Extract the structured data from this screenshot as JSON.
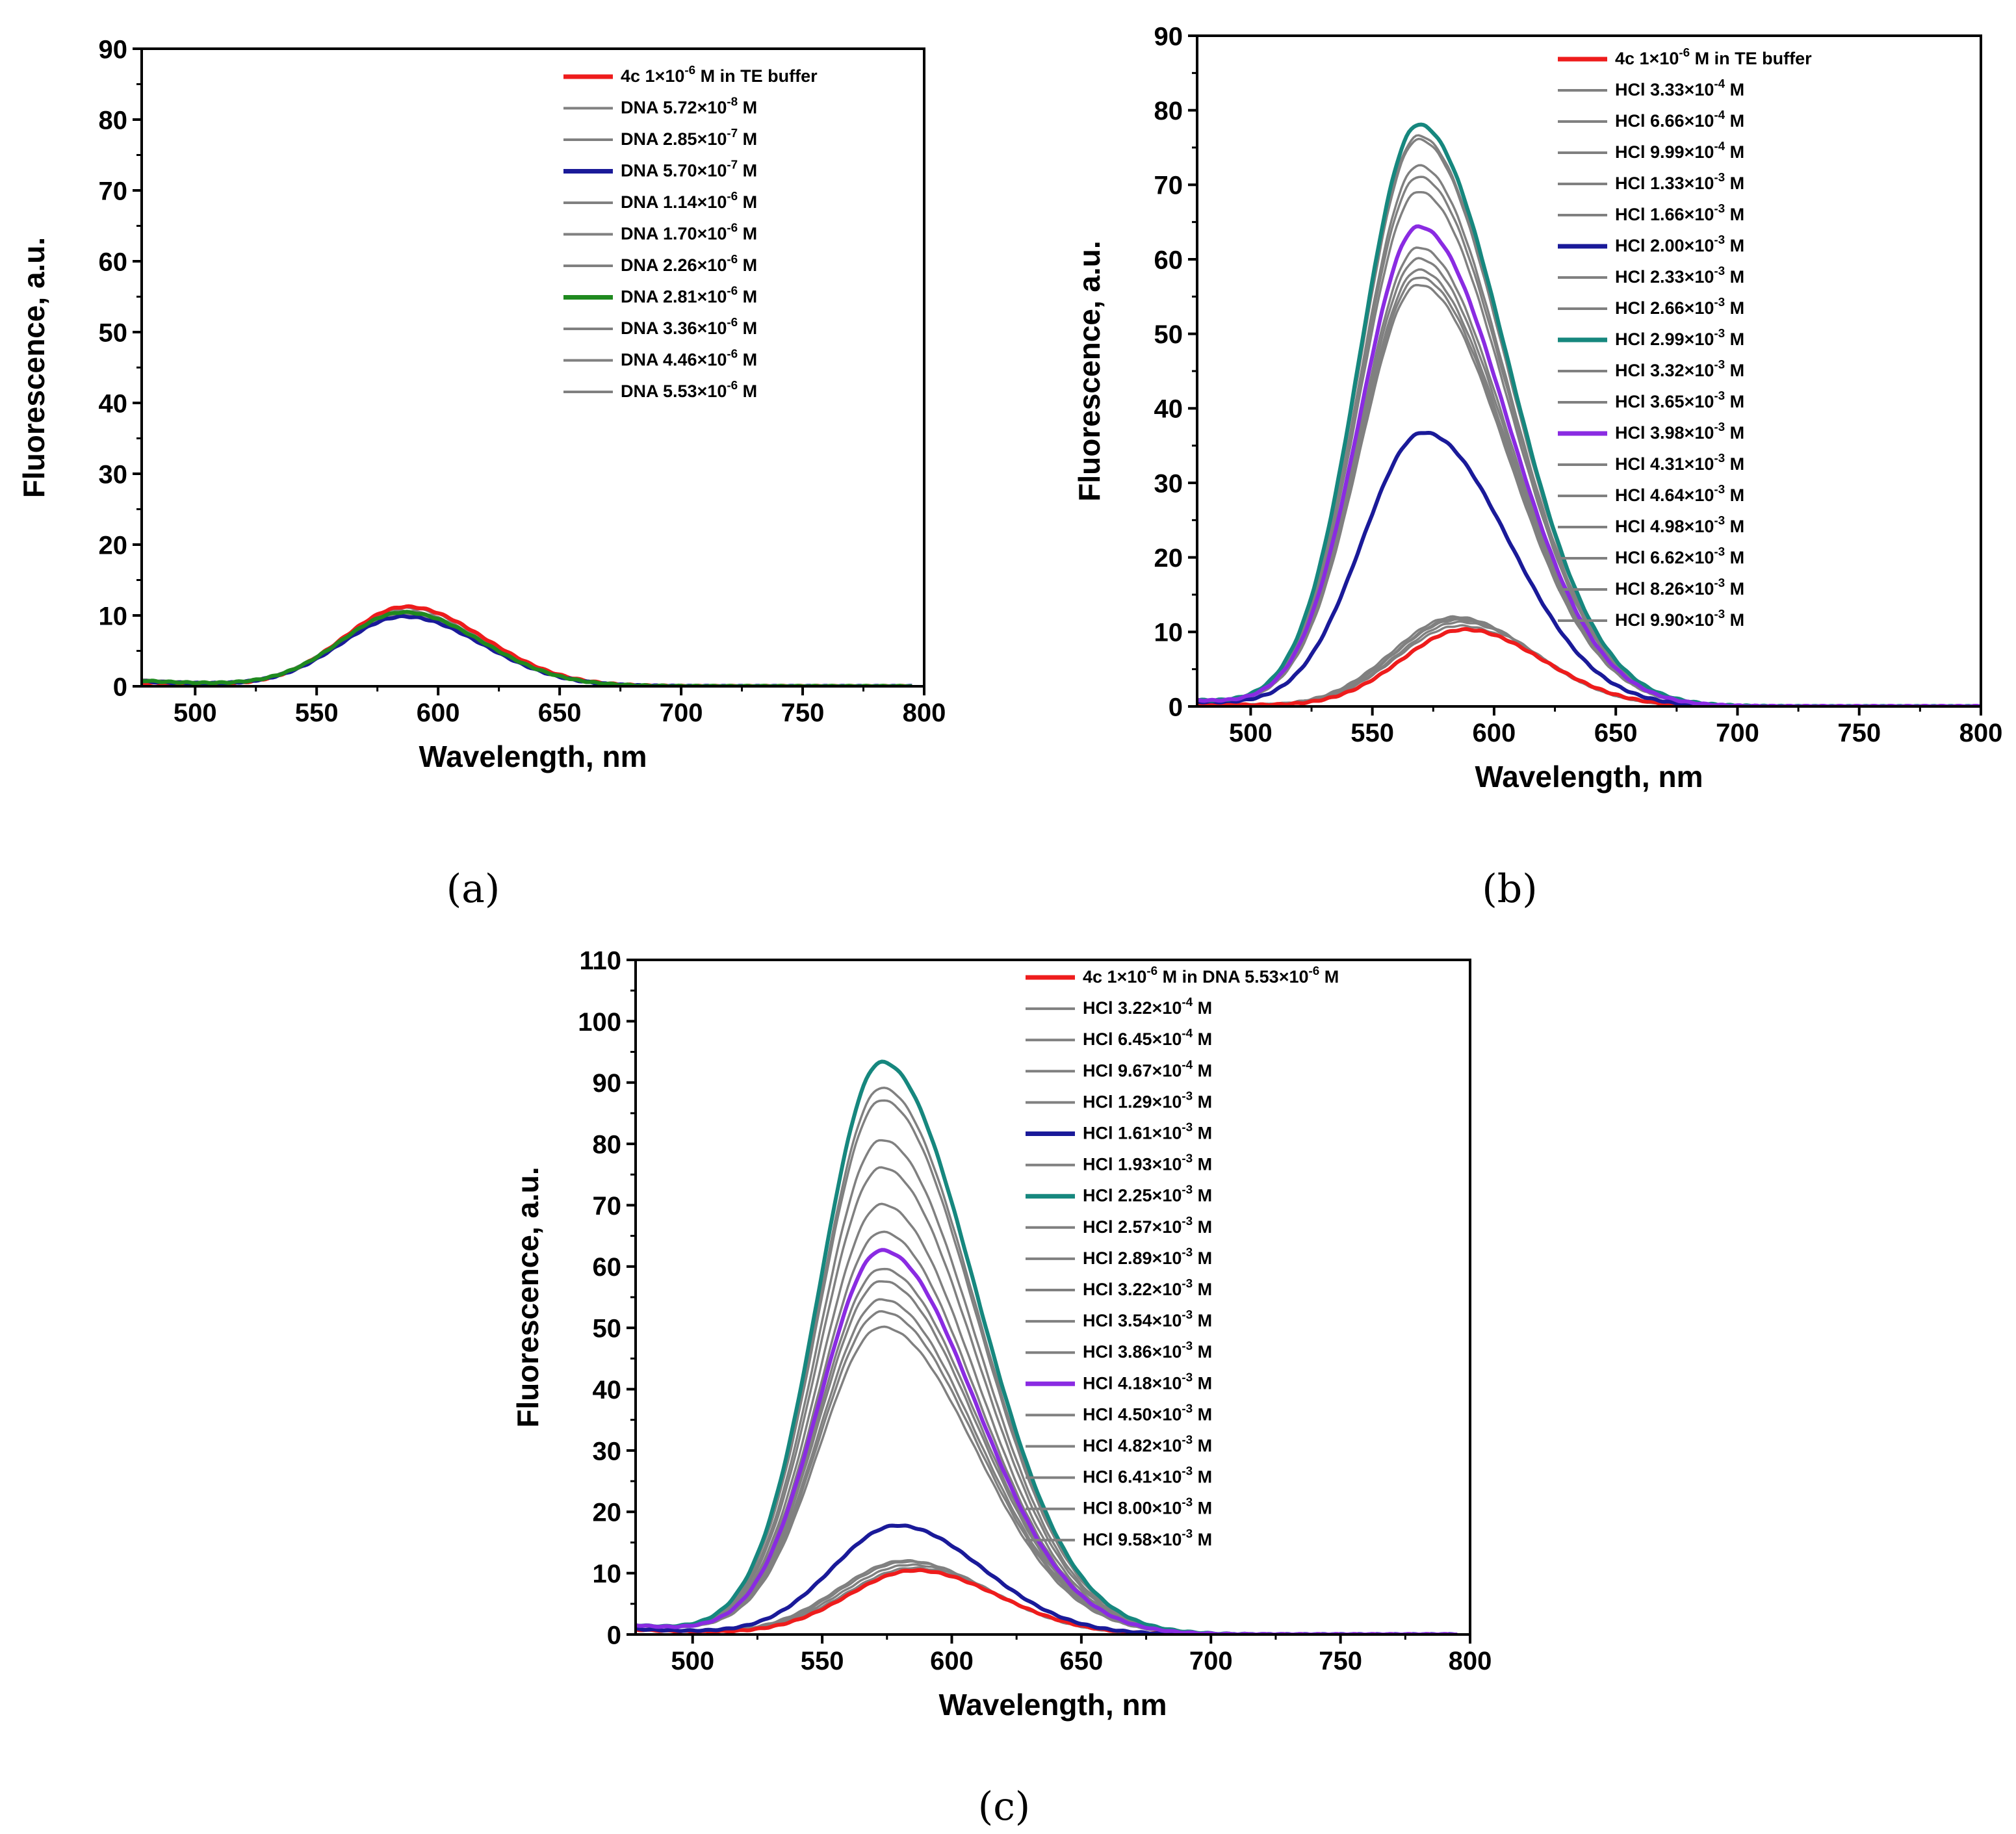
{
  "chart_data": [
    {
      "type": "line",
      "panel_label": "(a)",
      "xlabel": "Wavelength, nm",
      "ylabel": "Fluorescence, a.u.",
      "xlim": [
        478,
        800
      ],
      "ylim": [
        0,
        90
      ],
      "xticks": [
        500,
        550,
        600,
        650,
        700,
        750,
        800
      ],
      "yticks": [
        0,
        10,
        20,
        30,
        40,
        50,
        60,
        70,
        80,
        90
      ],
      "legend_position": "top-right",
      "series": [
        {
          "name": "4c 1×10",
          "sup": "-6",
          "tail": " M in TE buffer",
          "color": "#ee1c1c",
          "highlight": true,
          "peak": 11.2,
          "center": 587,
          "sigma_left": 26,
          "sigma_right": 32,
          "baseline": 0.5
        },
        {
          "name": "DNA 5.72×10",
          "sup": "-8",
          "tail": " M",
          "color": "#808080",
          "highlight": false,
          "peak": 11.0,
          "center": 587,
          "sigma_left": 26,
          "sigma_right": 32,
          "baseline": 0.6
        },
        {
          "name": "DNA 2.85×10",
          "sup": "-7",
          "tail": " M",
          "color": "#808080",
          "highlight": false,
          "peak": 10.5,
          "center": 587,
          "sigma_left": 26,
          "sigma_right": 32,
          "baseline": 0.6
        },
        {
          "name": "DNA 5.70×10",
          "sup": "-7",
          "tail": " M",
          "color": "#1a1a99",
          "highlight": true,
          "peak": 9.8,
          "center": 586,
          "sigma_left": 26,
          "sigma_right": 32,
          "baseline": 0.7
        },
        {
          "name": "DNA 1.14×10",
          "sup": "-6",
          "tail": " M",
          "color": "#808080",
          "highlight": false,
          "peak": 10.0,
          "center": 586,
          "sigma_left": 26,
          "sigma_right": 32,
          "baseline": 0.7
        },
        {
          "name": "DNA 1.70×10",
          "sup": "-6",
          "tail": " M",
          "color": "#808080",
          "highlight": false,
          "peak": 10.2,
          "center": 586,
          "sigma_left": 26,
          "sigma_right": 32,
          "baseline": 0.7
        },
        {
          "name": "DNA 2.26×10",
          "sup": "-6",
          "tail": " M",
          "color": "#808080",
          "highlight": false,
          "peak": 10.3,
          "center": 586,
          "sigma_left": 26,
          "sigma_right": 32,
          "baseline": 0.8
        },
        {
          "name": "DNA 2.81×10",
          "sup": "-6",
          "tail": " M",
          "color": "#1f8a1f",
          "highlight": true,
          "peak": 10.4,
          "center": 586,
          "sigma_left": 26,
          "sigma_right": 32,
          "baseline": 0.8
        },
        {
          "name": "DNA 3.36×10",
          "sup": "-6",
          "tail": " M",
          "color": "#808080",
          "highlight": false,
          "peak": 10.4,
          "center": 586,
          "sigma_left": 26,
          "sigma_right": 32,
          "baseline": 0.8
        },
        {
          "name": "DNA 4.46×10",
          "sup": "-6",
          "tail": " M",
          "color": "#808080",
          "highlight": false,
          "peak": 10.5,
          "center": 586,
          "sigma_left": 26,
          "sigma_right": 32,
          "baseline": 0.9
        },
        {
          "name": "DNA 5.53×10",
          "sup": "-6",
          "tail": " M",
          "color": "#808080",
          "highlight": false,
          "peak": 10.6,
          "center": 586,
          "sigma_left": 26,
          "sigma_right": 32,
          "baseline": 0.9
        }
      ]
    },
    {
      "type": "line",
      "panel_label": "(b)",
      "xlabel": "Wavelength, nm",
      "ylabel": "Fluorescence, a.u.",
      "xlim": [
        478,
        800
      ],
      "ylim": [
        0,
        90
      ],
      "xticks": [
        500,
        550,
        600,
        650,
        700,
        750,
        800
      ],
      "yticks": [
        0,
        10,
        20,
        30,
        40,
        50,
        60,
        70,
        80,
        90
      ],
      "legend_position": "top-right",
      "series": [
        {
          "name": "4c 1×10",
          "sup": "-6",
          "tail": " M in TE buffer",
          "color": "#ee1c1c",
          "highlight": true,
          "peak": 10.3,
          "center": 588,
          "sigma_left": 26,
          "sigma_right": 32,
          "baseline": 0.3
        },
        {
          "name": "HCl 3.33×10",
          "sup": "-4",
          "tail": " M",
          "color": "#808080",
          "highlight": false,
          "peak": 10.8,
          "center": 586,
          "sigma_left": 26,
          "sigma_right": 32,
          "baseline": 0.3
        },
        {
          "name": "HCl 6.66×10",
          "sup": "-4",
          "tail": " M",
          "color": "#808080",
          "highlight": false,
          "peak": 11.3,
          "center": 586,
          "sigma_left": 26,
          "sigma_right": 32,
          "baseline": 0.3
        },
        {
          "name": "HCl 9.99×10",
          "sup": "-4",
          "tail": " M",
          "color": "#808080",
          "highlight": false,
          "peak": 11.6,
          "center": 585,
          "sigma_left": 26,
          "sigma_right": 32,
          "baseline": 0.3
        },
        {
          "name": "HCl 1.33×10",
          "sup": "-3",
          "tail": " M",
          "color": "#808080",
          "highlight": false,
          "peak": 11.8,
          "center": 585,
          "sigma_left": 26,
          "sigma_right": 32,
          "baseline": 0.3
        },
        {
          "name": "HCl 1.66×10",
          "sup": "-3",
          "tail": " M",
          "color": "#808080",
          "highlight": false,
          "peak": 12.0,
          "center": 584,
          "sigma_left": 26,
          "sigma_right": 32,
          "baseline": 0.3
        },
        {
          "name": "HCl 2.00×10",
          "sup": "-3",
          "tail": " M",
          "color": "#1a1a99",
          "highlight": true,
          "peak": 36.7,
          "center": 571,
          "sigma_left": 25,
          "sigma_right": 35,
          "baseline": 0.6
        },
        {
          "name": "HCl 2.33×10",
          "sup": "-3",
          "tail": " M",
          "color": "#808080",
          "highlight": false,
          "peak": 56.5,
          "center": 569,
          "sigma_left": 24,
          "sigma_right": 36,
          "baseline": 0.8
        },
        {
          "name": "HCl 2.66×10",
          "sup": "-3",
          "tail": " M",
          "color": "#808080",
          "highlight": false,
          "peak": 57.5,
          "center": 569,
          "sigma_left": 24,
          "sigma_right": 36,
          "baseline": 0.8
        },
        {
          "name": "HCl 2.99×10",
          "sup": "-3",
          "tail": " M",
          "color": "#16877e",
          "highlight": true,
          "peak": 78.0,
          "center": 569,
          "sigma_left": 24,
          "sigma_right": 36,
          "baseline": 0.8
        },
        {
          "name": "HCl 3.32×10",
          "sup": "-3",
          "tail": " M",
          "color": "#808080",
          "highlight": false,
          "peak": 58.5,
          "center": 569,
          "sigma_left": 24,
          "sigma_right": 36,
          "baseline": 0.8
        },
        {
          "name": "HCl 3.65×10",
          "sup": "-3",
          "tail": " M",
          "color": "#808080",
          "highlight": false,
          "peak": 60.0,
          "center": 569,
          "sigma_left": 24,
          "sigma_right": 36,
          "baseline": 0.8
        },
        {
          "name": "HCl 3.98×10",
          "sup": "-3",
          "tail": " M",
          "color": "#8a2be2",
          "highlight": true,
          "peak": 64.3,
          "center": 569,
          "sigma_left": 24,
          "sigma_right": 36,
          "baseline": 0.8
        },
        {
          "name": "HCl 4.31×10",
          "sup": "-3",
          "tail": " M",
          "color": "#808080",
          "highlight": false,
          "peak": 61.5,
          "center": 569,
          "sigma_left": 24,
          "sigma_right": 36,
          "baseline": 0.8
        },
        {
          "name": "HCl 4.64×10",
          "sup": "-3",
          "tail": " M",
          "color": "#808080",
          "highlight": false,
          "peak": 69.0,
          "center": 569,
          "sigma_left": 24,
          "sigma_right": 36,
          "baseline": 0.8
        },
        {
          "name": "HCl 4.98×10",
          "sup": "-3",
          "tail": " M",
          "color": "#808080",
          "highlight": false,
          "peak": 71.0,
          "center": 569,
          "sigma_left": 24,
          "sigma_right": 36,
          "baseline": 0.8
        },
        {
          "name": "HCl 6.62×10",
          "sup": "-3",
          "tail": " M",
          "color": "#808080",
          "highlight": false,
          "peak": 72.5,
          "center": 569,
          "sigma_left": 24,
          "sigma_right": 36,
          "baseline": 0.8
        },
        {
          "name": "HCl 8.26×10",
          "sup": "-3",
          "tail": " M",
          "color": "#808080",
          "highlight": false,
          "peak": 76.0,
          "center": 569,
          "sigma_left": 24,
          "sigma_right": 36,
          "baseline": 0.8
        },
        {
          "name": "HCl 9.90×10",
          "sup": "-3",
          "tail": " M",
          "color": "#808080",
          "highlight": false,
          "peak": 76.5,
          "center": 569,
          "sigma_left": 24,
          "sigma_right": 36,
          "baseline": 0.8
        }
      ]
    },
    {
      "type": "line",
      "panel_label": "(c)",
      "xlabel": "Wavelength, nm",
      "ylabel": "Fluorescence, a.u.",
      "xlim": [
        478,
        800
      ],
      "ylim": [
        0,
        110
      ],
      "xticks": [
        500,
        550,
        600,
        650,
        700,
        750,
        800
      ],
      "yticks": [
        0,
        10,
        20,
        30,
        40,
        50,
        60,
        70,
        80,
        90,
        100,
        110
      ],
      "legend_position": "top-right",
      "series": [
        {
          "name": "4c 1×10",
          "sup": "-6",
          "tail": " M in DNA 5.53×10",
          "sup2": "-6",
          "tail2": " M",
          "color": "#ee1c1c",
          "highlight": true,
          "peak": 10.4,
          "center": 586,
          "sigma_left": 26,
          "sigma_right": 32,
          "baseline": 0.8
        },
        {
          "name": "HCl 3.22×10",
          "sup": "-4",
          "tail": " M",
          "color": "#808080",
          "highlight": false,
          "peak": 10.8,
          "center": 585,
          "sigma_left": 26,
          "sigma_right": 32,
          "baseline": 0.8
        },
        {
          "name": "HCl 6.45×10",
          "sup": "-4",
          "tail": " M",
          "color": "#808080",
          "highlight": false,
          "peak": 11.3,
          "center": 584,
          "sigma_left": 26,
          "sigma_right": 32,
          "baseline": 0.8
        },
        {
          "name": "HCl 9.67×10",
          "sup": "-4",
          "tail": " M",
          "color": "#808080",
          "highlight": false,
          "peak": 11.8,
          "center": 583,
          "sigma_left": 26,
          "sigma_right": 32,
          "baseline": 0.8
        },
        {
          "name": "HCl 1.29×10",
          "sup": "-3",
          "tail": " M",
          "color": "#808080",
          "highlight": false,
          "peak": 12.0,
          "center": 582,
          "sigma_left": 26,
          "sigma_right": 32,
          "baseline": 0.8
        },
        {
          "name": "HCl 1.61×10",
          "sup": "-3",
          "tail": " M",
          "color": "#1a1a99",
          "highlight": true,
          "peak": 17.7,
          "center": 579,
          "sigma_left": 25,
          "sigma_right": 33,
          "baseline": 0.9
        },
        {
          "name": "HCl 1.93×10",
          "sup": "-3",
          "tail": " M",
          "color": "#808080",
          "highlight": false,
          "peak": 50.0,
          "center": 573,
          "sigma_left": 24,
          "sigma_right": 36,
          "baseline": 1.5
        },
        {
          "name": "HCl 2.25×10",
          "sup": "-3",
          "tail": " M",
          "color": "#16877e",
          "highlight": true,
          "peak": 93.2,
          "center": 573,
          "sigma_left": 24,
          "sigma_right": 36,
          "baseline": 1.5
        },
        {
          "name": "HCl 2.57×10",
          "sup": "-3",
          "tail": " M",
          "color": "#808080",
          "highlight": false,
          "peak": 52.5,
          "center": 573,
          "sigma_left": 24,
          "sigma_right": 36,
          "baseline": 1.5
        },
        {
          "name": "HCl 2.89×10",
          "sup": "-3",
          "tail": " M",
          "color": "#808080",
          "highlight": false,
          "peak": 54.5,
          "center": 573,
          "sigma_left": 24,
          "sigma_right": 36,
          "baseline": 1.5
        },
        {
          "name": "HCl 3.22×10",
          "sup": "-3",
          "tail": " M",
          "color": "#808080",
          "highlight": false,
          "peak": 57.5,
          "center": 573,
          "sigma_left": 24,
          "sigma_right": 36,
          "baseline": 1.5
        },
        {
          "name": "HCl 3.54×10",
          "sup": "-3",
          "tail": " M",
          "color": "#808080",
          "highlight": false,
          "peak": 59.5,
          "center": 573,
          "sigma_left": 24,
          "sigma_right": 36,
          "baseline": 1.5
        },
        {
          "name": "HCl 3.86×10",
          "sup": "-3",
          "tail": " M",
          "color": "#808080",
          "highlight": false,
          "peak": 65.5,
          "center": 573,
          "sigma_left": 24,
          "sigma_right": 36,
          "baseline": 1.5
        },
        {
          "name": "HCl 4.18×10",
          "sup": "-3",
          "tail": " M",
          "color": "#8a2be2",
          "highlight": true,
          "peak": 62.5,
          "center": 573,
          "sigma_left": 24,
          "sigma_right": 36,
          "baseline": 1.5
        },
        {
          "name": "HCl 4.50×10",
          "sup": "-3",
          "tail": " M",
          "color": "#808080",
          "highlight": false,
          "peak": 70.0,
          "center": 573,
          "sigma_left": 24,
          "sigma_right": 36,
          "baseline": 1.5
        },
        {
          "name": "HCl 4.82×10",
          "sup": "-3",
          "tail": " M",
          "color": "#808080",
          "highlight": false,
          "peak": 76.0,
          "center": 573,
          "sigma_left": 24,
          "sigma_right": 36,
          "baseline": 1.5
        },
        {
          "name": "HCl 6.41×10",
          "sup": "-3",
          "tail": " M",
          "color": "#808080",
          "highlight": false,
          "peak": 80.5,
          "center": 573,
          "sigma_left": 24,
          "sigma_right": 36,
          "baseline": 1.5
        },
        {
          "name": "HCl 8.00×10",
          "sup": "-3",
          "tail": " M",
          "color": "#808080",
          "highlight": false,
          "peak": 87.0,
          "center": 573,
          "sigma_left": 24,
          "sigma_right": 36,
          "baseline": 1.5
        },
        {
          "name": "HCl 9.58×10",
          "sup": "-3",
          "tail": " M",
          "color": "#808080",
          "highlight": false,
          "peak": 89.0,
          "center": 573,
          "sigma_left": 24,
          "sigma_right": 36,
          "baseline": 1.5
        }
      ]
    }
  ]
}
